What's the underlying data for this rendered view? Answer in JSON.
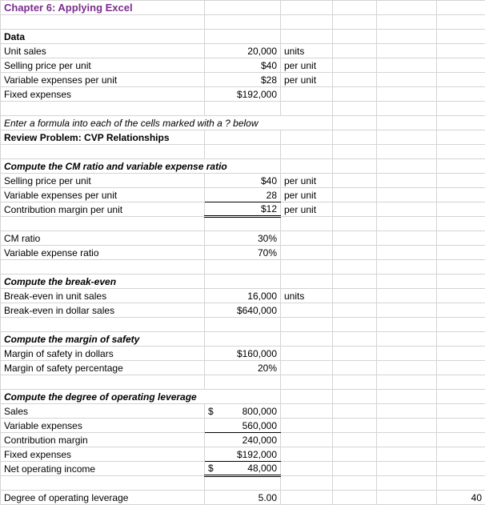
{
  "title": "Chapter 6: Applying Excel",
  "data_section": {
    "header": "Data",
    "rows": [
      {
        "label": "Unit sales",
        "value": "20,000",
        "unit": "units"
      },
      {
        "label": "Selling price per unit",
        "value": "$40",
        "unit": "per unit"
      },
      {
        "label": "Variable expenses per unit",
        "value": "$28",
        "unit": "per unit"
      },
      {
        "label": "Fixed expenses",
        "value": "$192,000",
        "unit": ""
      }
    ]
  },
  "instruction": "Enter a formula into each of the cells marked with a ? below",
  "review_header": "Review Problem: CVP Relationships",
  "cm_section": {
    "header": "Compute the CM ratio and variable expense ratio",
    "rows": [
      {
        "label": "Selling price per unit",
        "value": "$40",
        "unit": "per unit"
      },
      {
        "label": "Variable expenses per unit",
        "value": "28",
        "unit": "per unit"
      },
      {
        "label": "Contribution margin per unit",
        "value": "$12",
        "unit": "per unit"
      }
    ],
    "ratios": [
      {
        "label": "CM ratio",
        "value": "30%"
      },
      {
        "label": "Variable expense ratio",
        "value": "70%"
      }
    ]
  },
  "breakeven_section": {
    "header": "Compute the break-even",
    "rows": [
      {
        "label": "Break-even in unit sales",
        "value": "16,000",
        "unit": "units"
      },
      {
        "label": "Break-even in dollar sales",
        "value": "$640,000",
        "unit": ""
      }
    ]
  },
  "margin_section": {
    "header": "Compute the margin of safety",
    "rows": [
      {
        "label": "Margin of safety in dollars",
        "value": "$160,000"
      },
      {
        "label": "Margin of safety percentage",
        "value": "20%"
      }
    ]
  },
  "leverage_section": {
    "header": "Compute the degree of operating leverage",
    "sales": {
      "label": "Sales",
      "sym": "$",
      "value": "800,000"
    },
    "varexp": {
      "label": "Variable expenses",
      "value": "560,000"
    },
    "cm": {
      "label": "Contribution margin",
      "value": "240,000"
    },
    "fixed": {
      "label": "Fixed expenses",
      "value": "$192,000"
    },
    "noi": {
      "label": "Net operating income",
      "sym": "$",
      "value": "48,000"
    },
    "dol": {
      "label": "Degree of operating leverage",
      "value": "5.00",
      "extra": "40"
    }
  },
  "colors": {
    "title": "#7b2d8e",
    "grid": "#d4d4d4",
    "text": "#000000",
    "background": "#ffffff"
  }
}
